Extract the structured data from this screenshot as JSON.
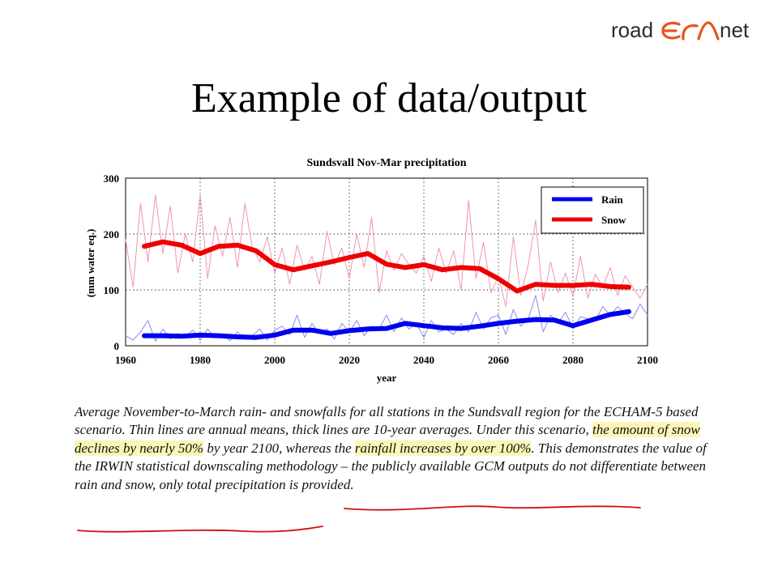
{
  "logo": {
    "prefix": "road",
    "mark": "ERA",
    "suffix": "net"
  },
  "slide": {
    "title": "Example of data/output"
  },
  "chart_data": {
    "type": "line",
    "title": "Sundsvall Nov-Mar precipitation",
    "xlabel": "year",
    "ylabel": "(mm water eq.)",
    "xlim": [
      1960,
      2100
    ],
    "ylim": [
      0,
      300
    ],
    "xticks": [
      1960,
      1980,
      2000,
      2020,
      2040,
      2060,
      2080,
      2100
    ],
    "yticks": [
      0,
      100,
      200,
      300
    ],
    "grid": true,
    "legend_position": "top-right",
    "series": [
      {
        "name": "Rain",
        "kind": "10-year mean",
        "color": "#0000ee",
        "x": [
          1965,
          1970,
          1975,
          1980,
          1985,
          1990,
          1995,
          2000,
          2005,
          2010,
          2015,
          2020,
          2025,
          2030,
          2035,
          2040,
          2045,
          2050,
          2055,
          2060,
          2065,
          2070,
          2075,
          2080,
          2085,
          2090,
          2095
        ],
        "y": [
          18,
          18,
          17,
          19,
          18,
          16,
          15,
          19,
          28,
          28,
          22,
          27,
          30,
          31,
          40,
          36,
          32,
          31,
          35,
          40,
          44,
          47,
          46,
          36,
          46,
          56,
          61
        ]
      },
      {
        "name": "Snow",
        "kind": "10-year mean",
        "color": "#ee0000",
        "x": [
          1965,
          1970,
          1975,
          1980,
          1985,
          1990,
          1995,
          2000,
          2005,
          2010,
          2015,
          2020,
          2025,
          2030,
          2035,
          2040,
          2045,
          2050,
          2055,
          2060,
          2065,
          2070,
          2075,
          2080,
          2085,
          2090,
          2095
        ],
        "y": [
          178,
          186,
          180,
          165,
          178,
          180,
          170,
          145,
          136,
          143,
          150,
          158,
          165,
          146,
          140,
          145,
          136,
          140,
          138,
          120,
          98,
          110,
          108,
          108,
          110,
          106,
          105
        ]
      },
      {
        "name": "Rain annual",
        "kind": "annual means",
        "color": "#8a8af2",
        "x": [
          1960,
          1962,
          1964,
          1966,
          1968,
          1970,
          1972,
          1974,
          1976,
          1978,
          1980,
          1982,
          1984,
          1986,
          1988,
          1990,
          1992,
          1994,
          1996,
          1998,
          2000,
          2002,
          2004,
          2006,
          2008,
          2010,
          2012,
          2014,
          2016,
          2018,
          2020,
          2022,
          2024,
          2026,
          2028,
          2030,
          2032,
          2034,
          2036,
          2038,
          2040,
          2042,
          2044,
          2046,
          2048,
          2050,
          2052,
          2054,
          2056,
          2058,
          2060,
          2062,
          2064,
          2066,
          2068,
          2070,
          2072,
          2074,
          2076,
          2078,
          2080,
          2082,
          2084,
          2086,
          2088,
          2090,
          2092,
          2094,
          2096,
          2098,
          2100
        ],
        "y": [
          18,
          10,
          25,
          45,
          8,
          30,
          12,
          22,
          15,
          28,
          10,
          30,
          14,
          20,
          9,
          25,
          12,
          18,
          30,
          10,
          28,
          35,
          20,
          55,
          15,
          40,
          22,
          30,
          12,
          40,
          25,
          45,
          18,
          35,
          30,
          55,
          25,
          50,
          30,
          40,
          15,
          45,
          25,
          30,
          20,
          40,
          25,
          60,
          30,
          50,
          55,
          20,
          65,
          35,
          48,
          90,
          25,
          55,
          40,
          60,
          30,
          52,
          48,
          45,
          70,
          55,
          70,
          58,
          48,
          75,
          55
        ]
      },
      {
        "name": "Snow annual",
        "kind": "annual means",
        "color": "#f094b2",
        "x": [
          1960,
          1962,
          1964,
          1966,
          1968,
          1970,
          1972,
          1974,
          1976,
          1978,
          1980,
          1982,
          1984,
          1986,
          1988,
          1990,
          1992,
          1994,
          1996,
          1998,
          2000,
          2002,
          2004,
          2006,
          2008,
          2010,
          2012,
          2014,
          2016,
          2018,
          2020,
          2022,
          2024,
          2026,
          2028,
          2030,
          2032,
          2034,
          2036,
          2038,
          2040,
          2042,
          2044,
          2046,
          2048,
          2050,
          2052,
          2054,
          2056,
          2058,
          2060,
          2062,
          2064,
          2066,
          2068,
          2070,
          2072,
          2074,
          2076,
          2078,
          2080,
          2082,
          2084,
          2086,
          2088,
          2090,
          2092,
          2094,
          2096,
          2098,
          2100
        ],
        "y": [
          190,
          105,
          255,
          150,
          270,
          165,
          250,
          130,
          200,
          150,
          270,
          120,
          215,
          160,
          230,
          140,
          255,
          175,
          150,
          195,
          130,
          175,
          110,
          180,
          135,
          160,
          110,
          205,
          145,
          175,
          120,
          200,
          140,
          230,
          95,
          170,
          135,
          165,
          145,
          130,
          160,
          115,
          175,
          130,
          170,
          100,
          260,
          120,
          185,
          95,
          125,
          70,
          195,
          90,
          145,
          225,
          80,
          150,
          95,
          130,
          88,
          160,
          85,
          128,
          105,
          140,
          90,
          125,
          105,
          85,
          110
        ]
      }
    ]
  },
  "caption": {
    "p1": "Average November-to-March rain- and snowfalls for all stations in the Sundsvall region for the ECHAM-5 based scenario. Thin lines are annual means, thick lines are 10-year averages. Under this scenario, ",
    "h1": "the amount of snow declines by nearly 50%",
    "p2": " by year 2100, whereas the ",
    "h2": "rainfall increases by over 100%",
    "p3": ". This demonstrates the value of the IRWIN statistical downscaling methodology – ",
    "u1": "the publicly available GCM outputs do not differentiate between rain and snow",
    "p4": ", only total precipitation is provided."
  }
}
